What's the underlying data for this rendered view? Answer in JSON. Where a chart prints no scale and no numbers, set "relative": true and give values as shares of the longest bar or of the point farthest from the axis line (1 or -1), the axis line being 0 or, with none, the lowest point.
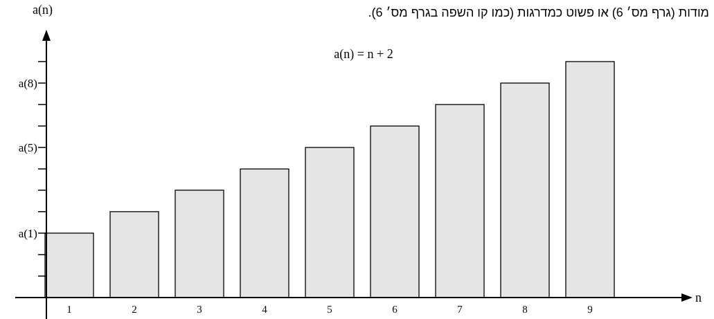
{
  "chart_data": {
    "type": "bar",
    "title": "מודות (גרף מס׳ 6) או פשוט כמדרגות (כמו קו השפה בגרף מס׳ 6).",
    "ylabel": "a(n)",
    "relative": true,
    "annotations": [
      "a(n) = n + 2",
      "a(1)",
      "a(5)",
      "a(8)",
      "n"
    ],
    "categories": [
      "1",
      "2",
      "3",
      "4",
      "5",
      "6",
      "7",
      "8",
      "9"
    ],
    "values": [
      0.273,
      0.364,
      0.455,
      0.545,
      0.636,
      0.727,
      0.818,
      0.909,
      1
    ],
    "color": "#e4e4e4"
  }
}
